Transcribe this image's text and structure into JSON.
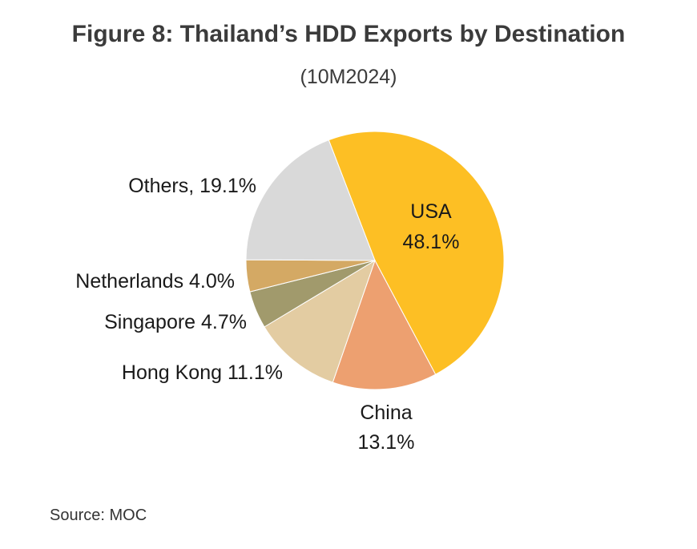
{
  "header": {
    "title": "Figure 8: Thailand’s HDD Exports by Destination",
    "subtitle": "(10M2024)"
  },
  "source": "Source: MOC",
  "chart_data": {
    "type": "pie",
    "title": "Figure 8: Thailand’s HDD Exports by Destination",
    "subtitle": "(10M2024)",
    "unit": "%",
    "slices": [
      {
        "label": "USA",
        "value": 48.1,
        "text": "USA",
        "value_text": "48.1%",
        "color": "#FDBF24"
      },
      {
        "label": "China",
        "value": 13.1,
        "text": "China",
        "value_text": "13.1%",
        "color": "#EDA070"
      },
      {
        "label": "Hong Kong",
        "value": 11.1,
        "text": "Hong Kong 11.1%",
        "color": "#E3CCA2"
      },
      {
        "label": "Singapore",
        "value": 4.7,
        "text": "Singapore 4.7%",
        "color": "#A19A6C"
      },
      {
        "label": "Netherlands",
        "value": 4.0,
        "text": "Netherlands 4.0%",
        "color": "#D4A964"
      },
      {
        "label": "Others",
        "value": 19.1,
        "text": "Others, 19.1%",
        "color": "#D9D9D9"
      }
    ]
  }
}
